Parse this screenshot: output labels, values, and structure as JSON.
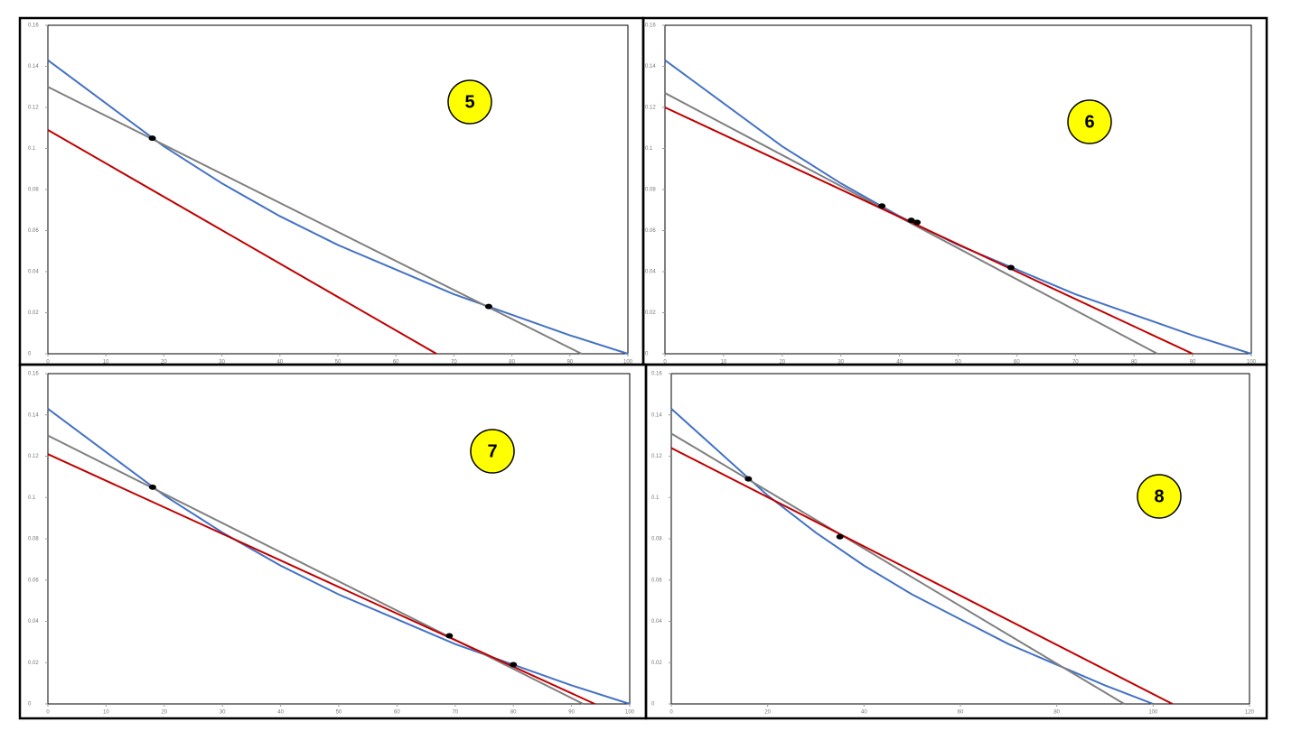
{
  "chart_data": [
    {
      "type": "line",
      "label": "5",
      "xlim": [
        0,
        100
      ],
      "ylim": [
        0,
        0.16
      ],
      "xticks": [
        0,
        10,
        20,
        30,
        40,
        50,
        60,
        70,
        80,
        90,
        100
      ],
      "yticks": [
        0,
        0.02,
        0.04,
        0.06,
        0.08,
        0.1,
        0.12,
        0.14,
        0.16
      ],
      "series": [
        {
          "color": "#4472c4",
          "x": [
            0,
            10,
            20,
            30,
            40,
            50,
            60,
            70,
            80,
            90,
            100
          ],
          "values": [
            0.143,
            0.122,
            0.101,
            0.083,
            0.067,
            0.053,
            0.041,
            0.029,
            0.019,
            0.009,
            0
          ]
        },
        {
          "color": "#808080",
          "x": [
            0,
            92
          ],
          "values": [
            0.13,
            0
          ]
        },
        {
          "color": "#c00000",
          "x": [
            0,
            67
          ],
          "values": [
            0.109,
            0
          ]
        },
        {
          "color": "#000000",
          "mode": "markers",
          "x": [
            18,
            76
          ],
          "values": [
            0.105,
            0.023
          ]
        }
      ]
    },
    {
      "type": "line",
      "label": "6",
      "xlim": [
        0,
        100
      ],
      "ylim": [
        0,
        0.16
      ],
      "xticks": [
        0,
        10,
        20,
        30,
        40,
        50,
        60,
        70,
        80,
        90,
        100
      ],
      "yticks": [
        0,
        0.02,
        0.04,
        0.06,
        0.08,
        0.1,
        0.12,
        0.14,
        0.16
      ],
      "series": [
        {
          "color": "#4472c4",
          "x": [
            0,
            10,
            20,
            30,
            40,
            50,
            60,
            70,
            80,
            90,
            100
          ],
          "values": [
            0.143,
            0.122,
            0.101,
            0.083,
            0.067,
            0.053,
            0.041,
            0.029,
            0.019,
            0.009,
            0
          ]
        },
        {
          "color": "#808080",
          "x": [
            0,
            84
          ],
          "values": [
            0.127,
            0
          ]
        },
        {
          "color": "#c00000",
          "x": [
            0,
            90
          ],
          "values": [
            0.12,
            0
          ]
        },
        {
          "color": "#000000",
          "mode": "markers",
          "x": [
            37,
            42,
            43,
            59
          ],
          "values": [
            0.072,
            0.065,
            0.064,
            0.042
          ]
        }
      ]
    },
    {
      "type": "line",
      "label": "7",
      "xlim": [
        0,
        100
      ],
      "ylim": [
        0,
        0.16
      ],
      "xticks": [
        0,
        10,
        20,
        30,
        40,
        50,
        60,
        70,
        80,
        90,
        100
      ],
      "yticks": [
        0,
        0.02,
        0.04,
        0.06,
        0.08,
        0.1,
        0.12,
        0.14,
        0.16
      ],
      "series": [
        {
          "color": "#4472c4",
          "x": [
            0,
            10,
            20,
            30,
            40,
            50,
            60,
            70,
            80,
            90,
            100
          ],
          "values": [
            0.143,
            0.122,
            0.101,
            0.083,
            0.067,
            0.053,
            0.041,
            0.029,
            0.019,
            0.009,
            0
          ]
        },
        {
          "color": "#808080",
          "x": [
            0,
            92
          ],
          "values": [
            0.13,
            0
          ]
        },
        {
          "color": "#c00000",
          "x": [
            0,
            94
          ],
          "values": [
            0.121,
            0
          ]
        },
        {
          "color": "#000000",
          "mode": "markers",
          "x": [
            18,
            69,
            80
          ],
          "values": [
            0.105,
            0.033,
            0.019
          ]
        }
      ]
    },
    {
      "type": "line",
      "label": "8",
      "xlim": [
        0,
        120
      ],
      "ylim": [
        0,
        0.16
      ],
      "xticks": [
        0,
        20,
        40,
        60,
        80,
        100,
        120
      ],
      "yticks": [
        0,
        0.02,
        0.04,
        0.06,
        0.08,
        0.1,
        0.12,
        0.14,
        0.16
      ],
      "series": [
        {
          "color": "#4472c4",
          "x": [
            0,
            10,
            20,
            30,
            40,
            50,
            60,
            70,
            80,
            90,
            100
          ],
          "values": [
            0.143,
            0.122,
            0.101,
            0.083,
            0.067,
            0.053,
            0.041,
            0.029,
            0.019,
            0.009,
            0
          ]
        },
        {
          "color": "#808080",
          "x": [
            0,
            94
          ],
          "values": [
            0.131,
            0
          ]
        },
        {
          "color": "#c00000",
          "x": [
            0,
            104
          ],
          "values": [
            0.124,
            0
          ]
        },
        {
          "color": "#000000",
          "mode": "markers",
          "x": [
            16,
            35
          ],
          "values": [
            0.109,
            0.081
          ]
        }
      ]
    }
  ]
}
